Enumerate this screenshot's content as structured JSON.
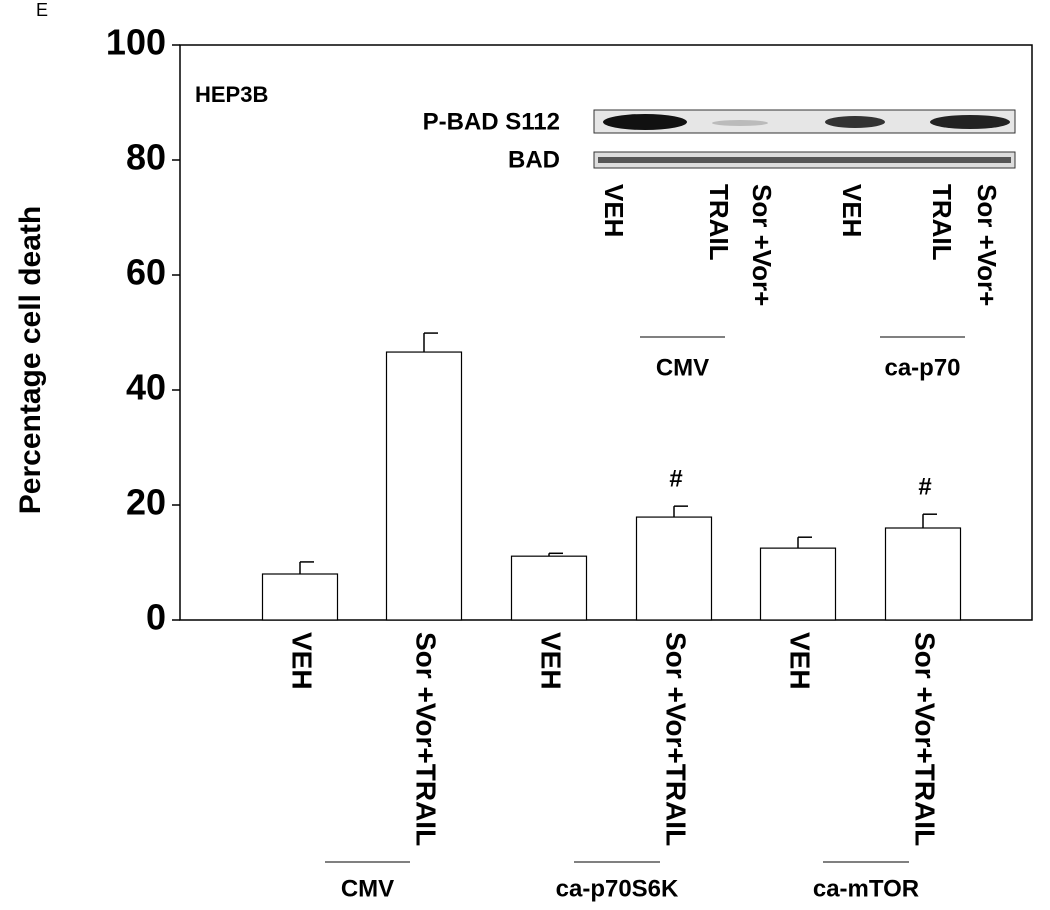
{
  "chart_data": {
    "type": "bar",
    "panel_label": "E",
    "ylabel": "Percentage cell death",
    "categories": [
      "VEH",
      "Sor +Vor+TRAIL",
      "VEH",
      "Sor +Vor+TRAIL",
      "VEH",
      "Sor +Vor+TRAIL"
    ],
    "groups": [
      "CMV",
      "ca-p70S6K",
      "ca-mTOR"
    ],
    "values": [
      8.0,
      46.6,
      11.1,
      17.9,
      12.5,
      16.0
    ],
    "errors": [
      2.1,
      3.3,
      0.5,
      1.9,
      1.9,
      2.4
    ],
    "annotations": [
      {
        "category": 3,
        "text": "#"
      },
      {
        "category": 5,
        "text": "#"
      }
    ],
    "color": "#ffffff",
    "ylim": [
      0,
      100
    ],
    "yticks": [
      0,
      20,
      40,
      60,
      80,
      100
    ],
    "inset": {
      "title": "HEP3B",
      "rows": [
        "P-BAD S112",
        "BAD"
      ],
      "lanes": [
        "VEH",
        "TRAIL",
        "Sor +Vor+",
        "VEH",
        "TRAIL",
        "Sor +Vor+"
      ],
      "lane_groups": [
        "CMV",
        "ca-p70"
      ]
    }
  }
}
